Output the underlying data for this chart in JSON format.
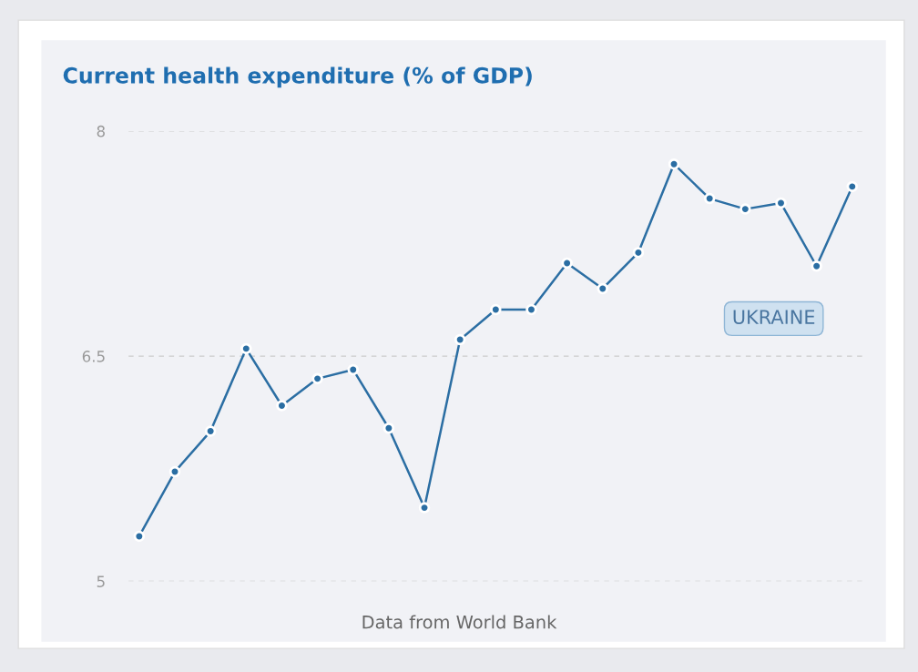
{
  "chart_data": {
    "type": "line",
    "title": "Current health expenditure (% of GDP)",
    "categories": [
      null,
      null,
      null,
      null,
      null,
      null,
      null,
      null,
      null,
      null,
      null,
      null,
      null,
      null,
      null,
      null,
      null,
      null,
      null,
      null,
      null
    ],
    "series": [
      {
        "name": "UKRAINE",
        "color": "#2b6ea3",
        "values": [
          5.3,
          5.73,
          6.0,
          6.55,
          6.17,
          6.35,
          6.41,
          6.02,
          5.49,
          6.61,
          6.81,
          6.81,
          7.12,
          6.95,
          7.19,
          7.78,
          7.55,
          7.48,
          7.52,
          7.1,
          7.63
        ]
      }
    ],
    "ylim": [
      5,
      8
    ],
    "yticks": [
      5,
      6.5,
      8
    ],
    "grid": "y",
    "marker": "circle",
    "line_style": "solid",
    "annotations": [
      "Data from World Bank"
    ]
  }
}
